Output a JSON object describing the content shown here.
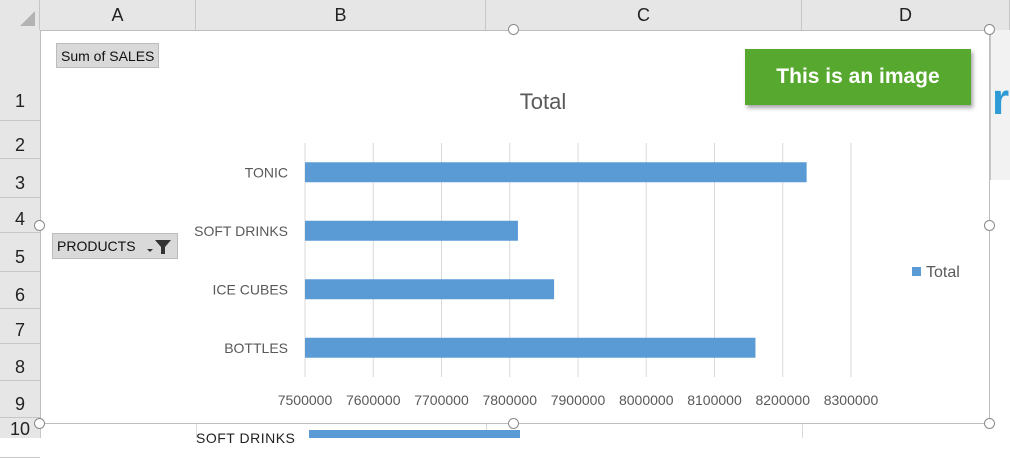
{
  "sheet": {
    "columns": [
      "A",
      "B",
      "C",
      "D"
    ],
    "rows": [
      "1",
      "2",
      "3",
      "4",
      "5",
      "6",
      "7",
      "8",
      "9",
      "10"
    ]
  },
  "pivot": {
    "value_field": "Sum of SALES",
    "row_field": "PRODUCTS"
  },
  "overlay": {
    "badge_text": "This is an image"
  },
  "legend": {
    "label": "Total"
  },
  "below_chart": {
    "category_label": "SOFT DRINKS"
  },
  "colors": {
    "bar": "#5b9bd5",
    "badge": "#57a82e",
    "gridline": "#d9d9d9"
  },
  "chart_data": {
    "type": "bar",
    "orientation": "horizontal",
    "title": "Total",
    "categories": [
      "TONIC",
      "SOFT DRINKS",
      "ICE CUBES",
      "BOTTLES"
    ],
    "series": [
      {
        "name": "Total",
        "values": [
          8235000,
          7812000,
          7865000,
          8160000
        ]
      }
    ],
    "xlim": [
      7500000,
      8300000
    ],
    "x_ticks": [
      "7500000",
      "7600000",
      "7700000",
      "7800000",
      "7900000",
      "8000000",
      "8100000",
      "8200000",
      "8300000"
    ],
    "grid": true,
    "legend_position": "right"
  }
}
